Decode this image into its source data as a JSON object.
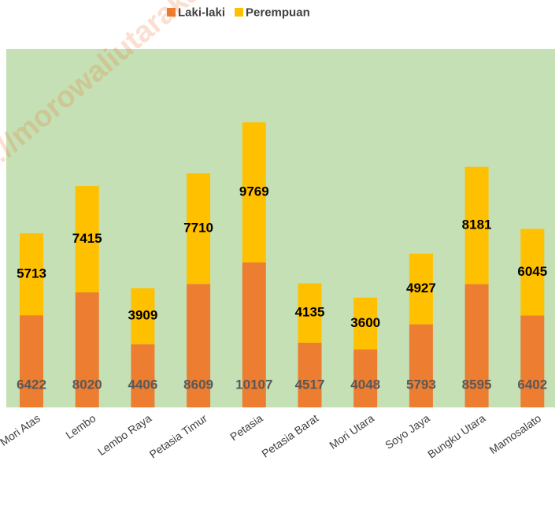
{
  "chart_data": {
    "type": "stacked_bar",
    "categories": [
      "Mori Atas",
      "Lembo",
      "Lembo Raya",
      "Petasia Timur",
      "Petasia",
      "Petasia Barat",
      "Mori Utara",
      "Soyo Jaya",
      "Bungku Utara",
      "Mamosalato"
    ],
    "series": [
      {
        "name": "Laki-laki",
        "color": "#ed7d31",
        "values": [
          6422,
          8020,
          4406,
          8609,
          10107,
          4517,
          4048,
          5793,
          8595,
          6402
        ]
      },
      {
        "name": "Perempuan",
        "color": "#ffc000",
        "values": [
          5713,
          7415,
          3909,
          7710,
          9769,
          4135,
          3600,
          4927,
          8181,
          6045
        ]
      }
    ],
    "ylim": [
      0,
      25000
    ],
    "legend": "top",
    "background": "#c5e0b4",
    "watermark": "http://morowaliutarakab.bps.go.id"
  }
}
